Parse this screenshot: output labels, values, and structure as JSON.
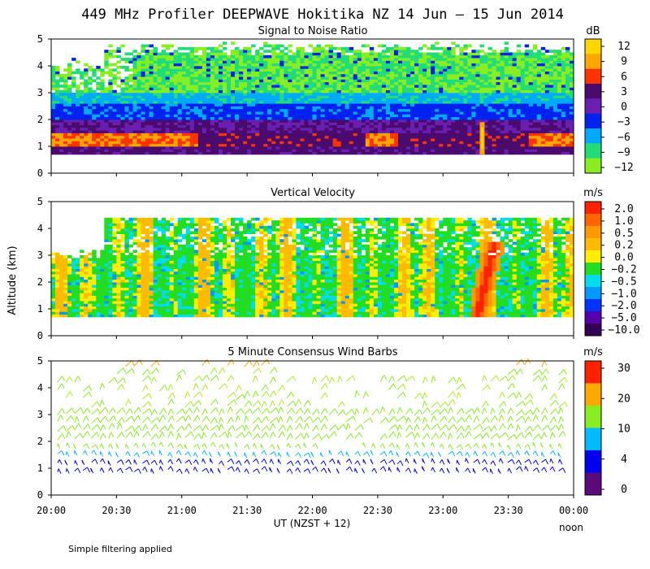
{
  "title": "449 MHz Profiler DEEPWAVE Hokitika NZ 14 Jun – 15 Jun 2014",
  "ylabel": "Altitude (km)",
  "xlabel": "UT  (NZST + 12)",
  "xnote": "noon",
  "footer": "Simple filtering applied",
  "x_ticks": [
    "20:00",
    "20:30",
    "21:00",
    "21:30",
    "22:00",
    "22:30",
    "23:00",
    "23:30",
    "00:00"
  ],
  "y_ticks": [
    "0",
    "1",
    "2",
    "3",
    "4",
    "5"
  ],
  "panels": [
    {
      "title": "Signal to Noise Ratio",
      "unit": "dB",
      "colorbar": [
        "12",
        "9",
        "6",
        "3",
        "0",
        "−3",
        "−6",
        "−9",
        "−12"
      ],
      "colors": [
        "#ffd700",
        "#ffa500",
        "#ff3300",
        "#4a0a6e",
        "#6a1fb0",
        "#0022ee",
        "#00aaff",
        "#22dd77",
        "#88ee22"
      ]
    },
    {
      "title": "Vertical Velocity",
      "unit": "m/s",
      "colorbar": [
        "2.0",
        "1.0",
        "0.5",
        "0.2",
        "0.0",
        "−0.2",
        "−0.5",
        "−1.0",
        "−2.0",
        "−5.0",
        "−10.0"
      ],
      "colors": [
        "#ff2200",
        "#ff6600",
        "#ff9900",
        "#ffbb00",
        "#ffee00",
        "#22dd22",
        "#00ddee",
        "#0099ff",
        "#0033ff",
        "#5500aa",
        "#330055"
      ]
    },
    {
      "title": "5 Minute Consensus Wind Barbs",
      "unit": "m/s",
      "colorbar": [
        "30",
        "20",
        "10",
        "4",
        "0"
      ],
      "colors": [
        "#ff2200",
        "#ffaa00",
        "#88ee22",
        "#00bbff",
        "#0000ee",
        "#5a0a7a"
      ]
    }
  ],
  "chart_data": [
    {
      "type": "heatmap",
      "title": "Signal to Noise Ratio",
      "unit": "dB",
      "x_range": [
        "20:00",
        "00:00"
      ],
      "ylim": [
        0,
        5
      ],
      "layers_by_altitude_km": [
        {
          "alt": [
            0.7,
            1.0
          ],
          "snr_db": 3
        },
        {
          "alt": [
            1.0,
            1.5
          ],
          "snr_db": 7
        },
        {
          "alt": [
            1.5,
            2.0
          ],
          "snr_db": 2
        },
        {
          "alt": [
            2.0,
            2.6
          ],
          "snr_db": -4
        },
        {
          "alt": [
            2.6,
            3.0
          ],
          "snr_db": -7
        },
        {
          "alt": [
            3.0,
            4.4
          ],
          "snr_db": -10
        }
      ]
    },
    {
      "type": "heatmap",
      "title": "Vertical Velocity",
      "unit": "m/s",
      "x_range": [
        "20:00",
        "00:00"
      ],
      "ylim": [
        0,
        5
      ],
      "notes": "mostly -0.5 to 0.5 m/s between 0.7 and 4.4 km; strong updraft (>2 m/s) near 23:20"
    },
    {
      "type": "wind_barbs",
      "title": "5 Minute Consensus Wind Barbs",
      "unit": "m/s",
      "x_range": [
        "20:00",
        "00:00"
      ],
      "ylim": [
        0,
        5
      ],
      "speed_by_altitude_km": [
        {
          "alt": 1.0,
          "speed": 3
        },
        {
          "alt": 1.5,
          "speed": 6
        },
        {
          "alt": 2.0,
          "speed": 12
        },
        {
          "alt": 2.5,
          "speed": 14
        },
        {
          "alt": 3.0,
          "speed": 10
        },
        {
          "alt": 4.0,
          "speed": 14
        },
        {
          "alt": 4.8,
          "speed": 22
        }
      ]
    }
  ]
}
